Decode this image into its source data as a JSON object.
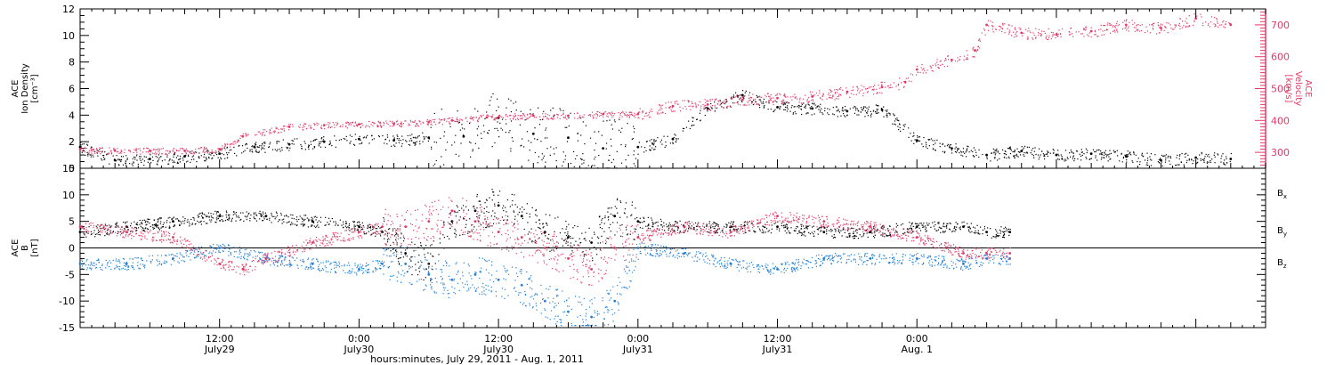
{
  "chart_data": [
    {
      "type": "scatter",
      "left_axis": {
        "lines": [
          "ACE",
          "Ion Density",
          "[cm⁻³]"
        ],
        "range": [
          0,
          12
        ],
        "ticks": [
          0,
          2,
          4,
          6,
          8,
          10,
          12
        ]
      },
      "right_axis": {
        "lines": [
          "ACE",
          "Velocity",
          "[km/s]"
        ],
        "range": [
          250,
          750
        ],
        "ticks": [
          300,
          400,
          500,
          600,
          700
        ],
        "color": "#e23a68"
      },
      "x_range": [
        0,
        102
      ],
      "series": [
        {
          "color": "#000000",
          "x": [
            0,
            3,
            6,
            9,
            12,
            15,
            18,
            21,
            24,
            27,
            30,
            33,
            36,
            39,
            42,
            45,
            48,
            51,
            54,
            57,
            60,
            63,
            66,
            69,
            72,
            75,
            78,
            81,
            84,
            87,
            90,
            93,
            96,
            99
          ],
          "y": [
            1.6,
            0.6,
            0.7,
            0.9,
            1.1,
            1.6,
            1.8,
            2.0,
            2.2,
            2.1,
            2.3,
            2.4,
            3.8,
            2.6,
            2.3,
            1.5,
            1.6,
            2.2,
            4.5,
            5.5,
            4.6,
            4.5,
            4.3,
            4.4,
            2.1,
            1.5,
            1.0,
            1.3,
            1.0,
            1.1,
            0.9,
            0.6,
            0.8,
            0.7
          ]
        },
        {
          "color": "#e23a68",
          "x": [
            0,
            3,
            6,
            9,
            12,
            14,
            18,
            21,
            24,
            27,
            30,
            32,
            35,
            39,
            42,
            45,
            48,
            51,
            54,
            57,
            60,
            63,
            66,
            69,
            71,
            72,
            75,
            77,
            78,
            81,
            84,
            87,
            90,
            93,
            96,
            99
          ],
          "y": [
            310,
            305,
            305,
            305,
            310,
            350,
            380,
            385,
            388,
            390,
            395,
            400,
            410,
            415,
            415,
            420,
            420,
            445,
            450,
            465,
            470,
            475,
            490,
            505,
            520,
            560,
            590,
            620,
            700,
            675,
            670,
            680,
            700,
            690,
            720,
            700
          ]
        }
      ]
    },
    {
      "type": "line",
      "axis": {
        "lines": [
          "ACE",
          "B",
          "[nT]"
        ],
        "range": [
          -15,
          15
        ],
        "ticks": [
          -15,
          -10,
          -5,
          0,
          5,
          10,
          15
        ]
      },
      "x_range": [
        0,
        102
      ],
      "x_ticks": [
        {
          "x": 12,
          "time": "12:00",
          "date": "July29"
        },
        {
          "x": 24,
          "time": "0:00",
          "date": "July30"
        },
        {
          "x": 36,
          "time": "12:00",
          "date": "July30"
        },
        {
          "x": 48,
          "time": "0:00",
          "date": "July31"
        },
        {
          "x": 60,
          "time": "12:00",
          "date": "July31"
        },
        {
          "x": 72,
          "time": "0:00",
          "date": "Aug. 1"
        }
      ],
      "xlabel": "hours:minutes, July 29, 2011 - Aug. 1, 2011",
      "series": [
        {
          "name": "Bx",
          "label": "B",
          "sub": "x",
          "color": "#000000",
          "x": [
            0,
            4,
            8,
            12,
            16,
            20,
            24,
            26,
            28,
            30,
            32,
            34,
            36,
            38,
            40,
            42,
            44,
            46,
            48,
            52,
            56,
            60,
            64,
            68,
            72,
            76,
            78,
            80
          ],
          "y": [
            3,
            4,
            5,
            6,
            6,
            5,
            4,
            3,
            -1,
            -3,
            5,
            7,
            8,
            6,
            3,
            2,
            1,
            6,
            5,
            4,
            4,
            4,
            3,
            3,
            4,
            4,
            3,
            3
          ]
        },
        {
          "name": "By",
          "label": "B",
          "sub": "y",
          "color": "#1f7fd8",
          "x": [
            0,
            4,
            8,
            12,
            16,
            20,
            24,
            26,
            28,
            30,
            32,
            34,
            36,
            38,
            40,
            42,
            44,
            46,
            48,
            52,
            56,
            60,
            64,
            68,
            72,
            76,
            78,
            80
          ],
          "y": [
            -3,
            -3,
            -2,
            0,
            -2,
            -3,
            -4,
            -3,
            -3,
            -5,
            -6,
            -5,
            -6,
            -7,
            -10,
            -12,
            -13,
            -10,
            0,
            -1,
            -3,
            -4,
            -2,
            -2,
            -2,
            -3,
            -2,
            -2
          ]
        },
        {
          "name": "Bz",
          "label": "B",
          "sub": "z",
          "color": "#e23a68",
          "x": [
            0,
            4,
            8,
            12,
            14,
            16,
            20,
            24,
            26,
            28,
            30,
            32,
            34,
            36,
            38,
            40,
            42,
            44,
            46,
            48,
            52,
            56,
            60,
            64,
            68,
            72,
            76,
            78,
            80
          ],
          "y": [
            4,
            3,
            2,
            -3,
            -4,
            -2,
            1,
            3,
            4,
            4,
            5,
            7,
            5,
            3,
            2,
            0,
            -2,
            -4,
            0,
            2,
            4,
            3,
            6,
            5,
            4,
            2,
            -1,
            -1,
            -1
          ]
        }
      ]
    }
  ]
}
